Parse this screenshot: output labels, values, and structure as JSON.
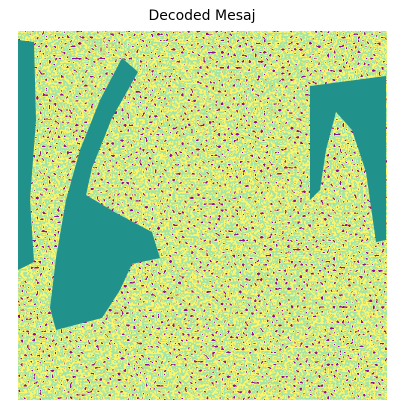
{
  "title": "Decoded Mesaj"
}
